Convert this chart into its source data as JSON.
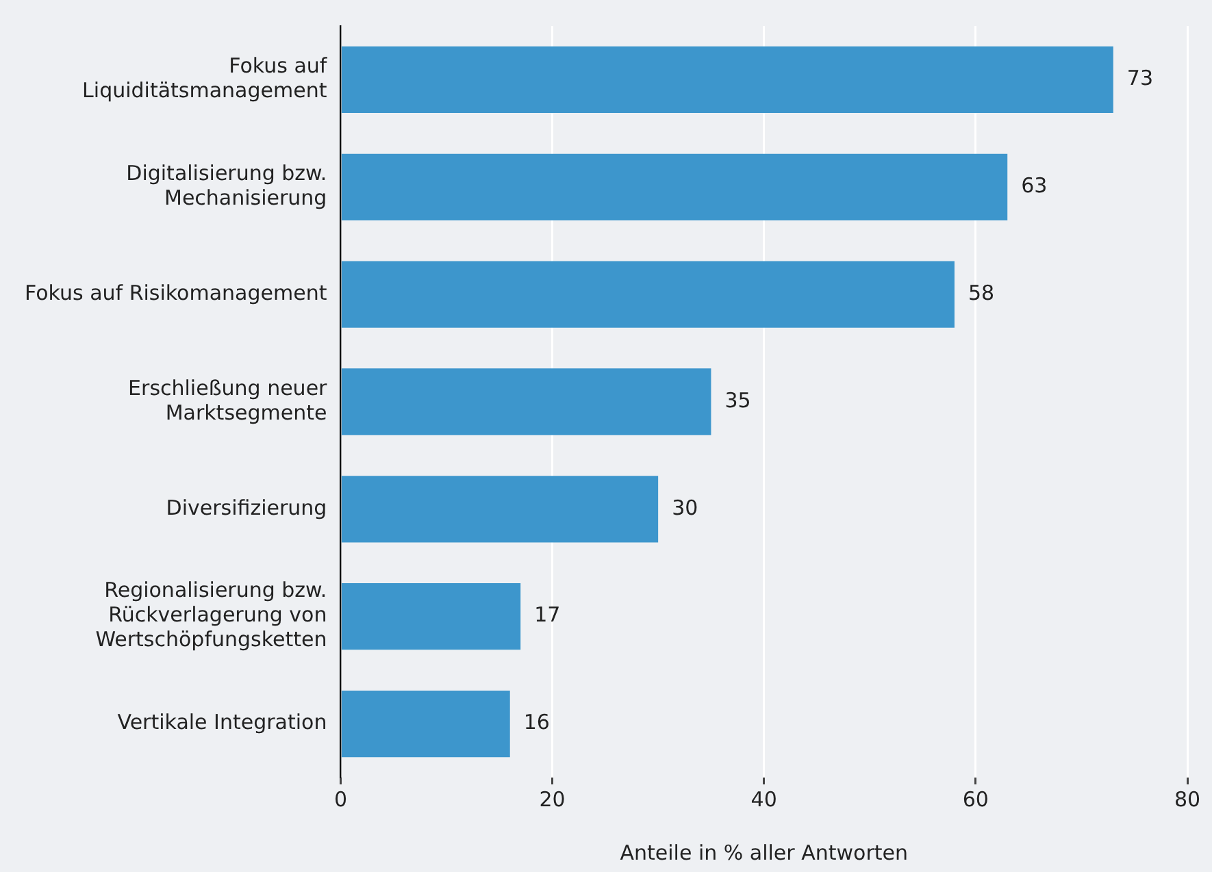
{
  "chart_data": {
    "type": "bar",
    "orientation": "horizontal",
    "xlabel": "Anteile in % aller Antworten",
    "categories": [
      "Fokus auf\nLiquiditätsmanagement",
      "Digitalisierung bzw.\nMechanisierung",
      "Fokus auf Risikomanagement",
      "Erschließung neuer\nMarktsegmente",
      "Diversifizierung",
      "Regionalisierung bzw.\nRückverlagerung von\nWertschöpfungsketten",
      "Vertikale Integration"
    ],
    "values": [
      73,
      63,
      58,
      35,
      30,
      17,
      16
    ],
    "color": "#3d96cc",
    "xlim": [
      0,
      80
    ],
    "xticks": [
      0,
      20,
      40,
      60,
      80
    ],
    "grid": "x",
    "data_labels": true,
    "legend": false
  }
}
